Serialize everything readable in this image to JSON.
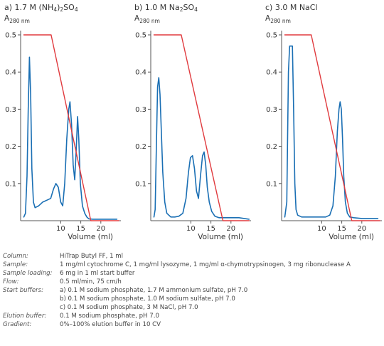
{
  "chart_data": [
    {
      "type": "line",
      "title_parts": [
        "a) 1.7 M (NH",
        "4",
        ")",
        "2",
        "SO",
        "4"
      ],
      "ylabel_main": "A",
      "ylabel_sub": "280 nm",
      "xlabel": "Volume (ml)",
      "xlim": [
        0,
        25
      ],
      "ylim": [
        0,
        0.5
      ],
      "xticks": [
        "10",
        "15",
        "20"
      ],
      "yticks": [
        "0.1",
        "0.2",
        "0.3",
        "0.4",
        "0.5"
      ],
      "series": [
        {
          "role": "absorbance",
          "color": "#1a6fb4",
          "x": [
            0.8,
            1.2,
            1.6,
            1.9,
            2.2,
            2.5,
            2.8,
            3.2,
            3.6,
            4.5,
            5.5,
            6.5,
            7.5,
            8.2,
            8.8,
            9.4,
            10.0,
            10.5,
            11.0,
            11.5,
            12.0,
            12.3,
            12.7,
            13.1,
            13.5,
            13.9,
            14.2,
            14.5,
            14.9,
            15.4,
            16.0,
            16.5,
            17.0,
            18.0,
            20.0,
            22.0,
            24.0
          ],
          "y": [
            0.01,
            0.02,
            0.12,
            0.3,
            0.44,
            0.34,
            0.14,
            0.05,
            0.035,
            0.04,
            0.05,
            0.055,
            0.06,
            0.085,
            0.1,
            0.09,
            0.05,
            0.04,
            0.1,
            0.22,
            0.3,
            0.32,
            0.26,
            0.15,
            0.11,
            0.2,
            0.28,
            0.22,
            0.1,
            0.04,
            0.02,
            0.01,
            0.005,
            0.004,
            0.004,
            0.004,
            0.004
          ]
        },
        {
          "role": "gradient",
          "color": "#e03a3e",
          "x": [
            0.8,
            7.6,
            17.5,
            24.5
          ],
          "y": [
            0.5,
            0.5,
            0.0,
            0.0
          ]
        }
      ]
    },
    {
      "type": "line",
      "title_parts": [
        "b) 1.0 M Na",
        "2",
        "SO",
        "4"
      ],
      "ylabel_main": "A",
      "ylabel_sub": "280 nm",
      "xlabel": "Volume (ml)",
      "xlim": [
        0,
        25
      ],
      "ylim": [
        0,
        0.5
      ],
      "xticks": [
        "10",
        "15",
        "20"
      ],
      "yticks": [
        "0.1",
        "0.2",
        "0.3",
        "0.4",
        "0.5"
      ],
      "series": [
        {
          "role": "absorbance",
          "color": "#1a6fb4",
          "x": [
            0.8,
            1.1,
            1.4,
            1.7,
            2.0,
            2.3,
            2.6,
            3.0,
            3.5,
            4.0,
            5.0,
            6.0,
            7.0,
            8.0,
            8.8,
            9.4,
            9.9,
            10.4,
            10.9,
            11.4,
            11.9,
            12.4,
            12.9,
            13.3,
            13.7,
            14.1,
            14.6,
            15.2,
            16.0,
            17.0,
            18.0,
            20.0,
            22.0,
            24.5
          ],
          "y": [
            0.01,
            0.03,
            0.2,
            0.36,
            0.385,
            0.34,
            0.25,
            0.13,
            0.05,
            0.02,
            0.01,
            0.01,
            0.012,
            0.02,
            0.06,
            0.13,
            0.17,
            0.175,
            0.14,
            0.08,
            0.06,
            0.12,
            0.175,
            0.185,
            0.15,
            0.09,
            0.05,
            0.025,
            0.012,
            0.008,
            0.008,
            0.008,
            0.008,
            0.004
          ]
        },
        {
          "role": "gradient",
          "color": "#e03a3e",
          "x": [
            0.8,
            7.6,
            18.0,
            24.5
          ],
          "y": [
            0.5,
            0.5,
            0.0,
            0.0
          ]
        }
      ]
    },
    {
      "type": "line",
      "title_parts": [
        "c) 3.0 M NaCl"
      ],
      "ylabel_main": "A",
      "ylabel_sub": "280 nm",
      "xlabel": "Volume (ml)",
      "xlim": [
        0,
        25
      ],
      "ylim": [
        0,
        0.5
      ],
      "xticks": [
        "10",
        "15",
        "20"
      ],
      "yticks": [
        "0.1",
        "0.2",
        "0.3",
        "0.4",
        "0.5"
      ],
      "series": [
        {
          "role": "absorbance",
          "color": "#1a6fb4",
          "x": [
            0.8,
            1.3,
            1.7,
            2.0,
            2.3,
            2.7,
            3.0,
            3.3,
            3.6,
            4.0,
            5.0,
            7.0,
            9.0,
            11.0,
            12.0,
            12.8,
            13.4,
            13.9,
            14.3,
            14.6,
            14.9,
            15.2,
            15.5,
            15.9,
            16.4,
            17.0,
            18.0,
            20.0,
            22.0,
            24.0
          ],
          "y": [
            0.01,
            0.05,
            0.4,
            0.47,
            0.47,
            0.47,
            0.3,
            0.1,
            0.03,
            0.015,
            0.01,
            0.01,
            0.01,
            0.01,
            0.015,
            0.04,
            0.12,
            0.24,
            0.3,
            0.32,
            0.3,
            0.22,
            0.12,
            0.05,
            0.02,
            0.01,
            0.008,
            0.006,
            0.006,
            0.006
          ]
        },
        {
          "role": "gradient",
          "color": "#e03a3e",
          "x": [
            0.8,
            7.4,
            17.5,
            24.5
          ],
          "y": [
            0.5,
            0.5,
            0.0,
            0.0
          ]
        }
      ]
    }
  ],
  "conditions": [
    {
      "label": "Column:",
      "values": [
        "HiTrap Butyl FF, 1 ml"
      ]
    },
    {
      "label": "Sample:",
      "values": [
        "1 mg/ml cytochrome C, 1 mg/ml lysozyme, 1 mg/ml α-chymotrypsinogen, 3 mg ribonuclease A"
      ]
    },
    {
      "label": "Sample loading:",
      "values": [
        "6 mg in 1 ml start buffer"
      ]
    },
    {
      "label": "Flow:",
      "values": [
        "0.5 ml/min, 75 cm/h"
      ]
    },
    {
      "label": "Start buffers:",
      "values": [
        "a) 0.1 M sodium phosphate, 1.7 M ammonium sulfate, pH 7.0",
        "b) 0.1 M sodium phosphate, 1.0 M sodium sulfate, pH 7.0",
        "c) 0.1 M sodium phosphate, 3 M NaCl, pH 7.0"
      ]
    },
    {
      "label": "Elution buffer:",
      "values": [
        "0.1 M sodium phosphate, pH 7.0"
      ]
    },
    {
      "label": "Gradient:",
      "values": [
        "0%–100% elution buffer in 10 CV"
      ]
    }
  ]
}
